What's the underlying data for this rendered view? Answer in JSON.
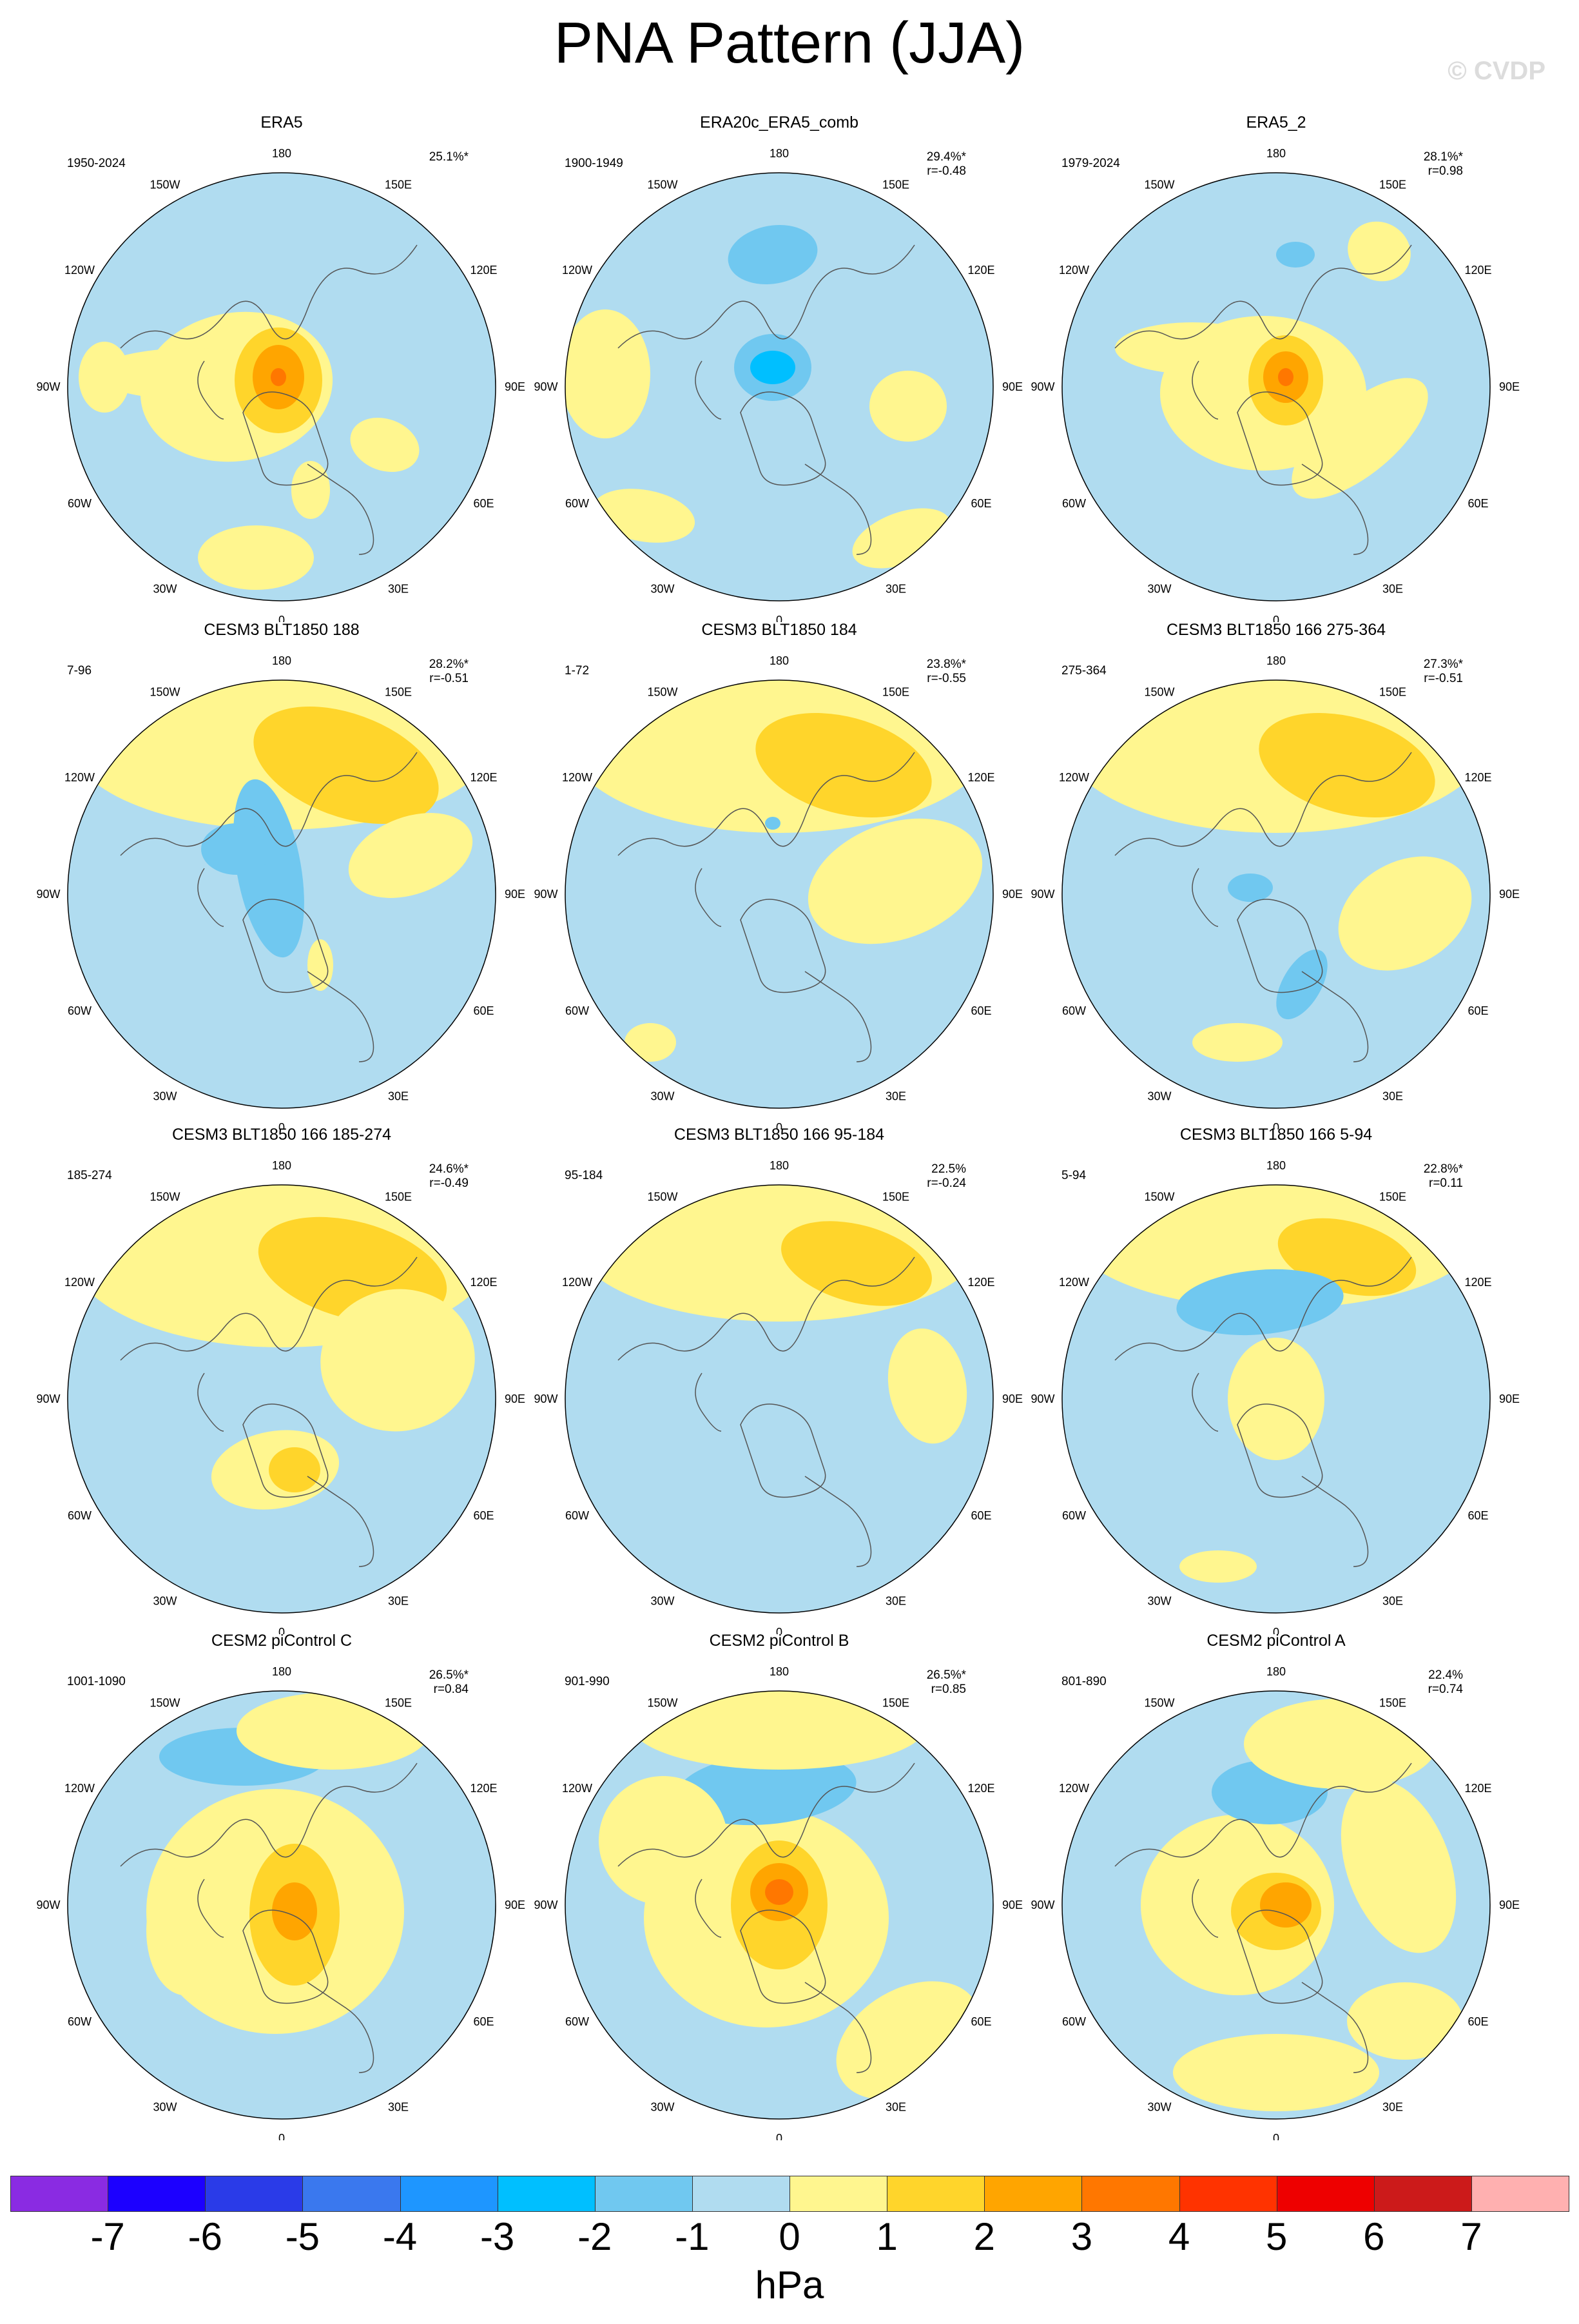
{
  "title": "PNA Pattern (JJA)",
  "copyright": "© CVDP",
  "map_labels": {
    "top": "180",
    "bottom": "0",
    "left": "90W",
    "right": "90E",
    "upper_left": "120W",
    "upper_left2": "150W",
    "upper_right": "120E",
    "upper_right2": "150E",
    "lower_left": "60W",
    "lower_left2": "30W",
    "lower_right": "60E",
    "lower_right2": "30E"
  },
  "panels": [
    {
      "title": "ERA5",
      "years": "1950-2024",
      "pct": "25.1%*",
      "r": "",
      "pattern": "era5"
    },
    {
      "title": "ERA20c_ERA5_comb",
      "years": "1900-1949",
      "pct": "29.4%*",
      "r": "r=-0.48",
      "pattern": "era20c"
    },
    {
      "title": "ERA5_2",
      "years": "1979-2024",
      "pct": "28.1%*",
      "r": "r=0.98",
      "pattern": "era5_2"
    },
    {
      "title": "CESM3 BLT1850 188",
      "years": "7-96",
      "pct": "28.2%*",
      "r": "r=-0.51",
      "pattern": "c188"
    },
    {
      "title": "CESM3 BLT1850 184",
      "years": "1-72",
      "pct": "23.8%*",
      "r": "r=-0.55",
      "pattern": "c184"
    },
    {
      "title": "CESM3 BLT1850 166 275-364",
      "years": "275-364",
      "pct": "27.3%*",
      "r": "r=-0.51",
      "pattern": "c166a"
    },
    {
      "title": "CESM3 BLT1850 166 185-274",
      "years": "185-274",
      "pct": "24.6%*",
      "r": "r=-0.49",
      "pattern": "c166b"
    },
    {
      "title": "CESM3 BLT1850 166 95-184",
      "years": "95-184",
      "pct": "22.5%",
      "r": "r=-0.24",
      "pattern": "c166c"
    },
    {
      "title": "CESM3 BLT1850 166 5-94",
      "years": "5-94",
      "pct": "22.8%*",
      "r": "r=0.11",
      "pattern": "c166d"
    },
    {
      "title": "CESM2 piControl C",
      "years": "1001-1090",
      "pct": "26.5%*",
      "r": "r=0.84",
      "pattern": "picC"
    },
    {
      "title": "CESM2 piControl B",
      "years": "901-990",
      "pct": "26.5%*",
      "r": "r=0.85",
      "pattern": "picB"
    },
    {
      "title": "CESM2 piControl A",
      "years": "801-890",
      "pct": "22.4%",
      "r": "r=0.74",
      "pattern": "picA"
    }
  ],
  "colorbar": {
    "unit": "hPa",
    "labels": [
      "-7",
      "-6",
      "-5",
      "-4",
      "-3",
      "-2",
      "-1",
      "0",
      "1",
      "2",
      "3",
      "4",
      "5",
      "6",
      "7"
    ],
    "colors": [
      "#8a2be2",
      "#1c00ff",
      "#2a3be8",
      "#3a78ee",
      "#1e96ff",
      "#00bfff",
      "#70c8f0",
      "#b0dcf0",
      "#fff68f",
      "#ffd52b",
      "#ffa500",
      "#ff7700",
      "#ff3300",
      "#ee0000",
      "#cc1a1a",
      "#ffb0b0"
    ]
  }
}
